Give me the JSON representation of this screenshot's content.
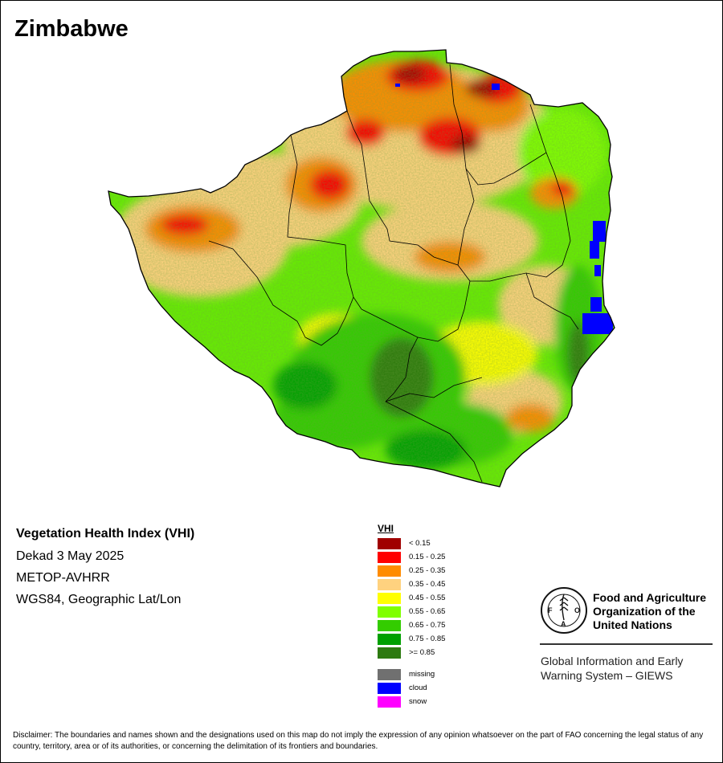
{
  "map": {
    "title": "Zimbabwe",
    "product_title": "Vegetation Health Index (VHI)",
    "dekad": "Dekad 3 May 2025",
    "sensor": "METOP-AVHRR",
    "projection": "WGS84, Geographic Lat/Lon"
  },
  "legend": {
    "title": "VHI",
    "classes": [
      {
        "label": "< 0.15",
        "color": "#a00000"
      },
      {
        "label": "0.15 - 0.25",
        "color": "#ff0000"
      },
      {
        "label": "0.25 - 0.35",
        "color": "#ff8c00"
      },
      {
        "label": "0.35 - 0.45",
        "color": "#ffd27f"
      },
      {
        "label": "0.45 - 0.55",
        "color": "#ffff00"
      },
      {
        "label": "0.55 - 0.65",
        "color": "#80ff00"
      },
      {
        "label": "0.65 - 0.75",
        "color": "#33cc00"
      },
      {
        "label": "0.75 - 0.85",
        "color": "#00a000"
      },
      {
        "label": ">= 0.85",
        "color": "#2d7a10"
      }
    ],
    "other": [
      {
        "label": "missing",
        "color": "#707070"
      },
      {
        "label": "cloud",
        "color": "#0000ff"
      },
      {
        "label": "snow",
        "color": "#ff00ff"
      }
    ]
  },
  "logo": {
    "organization": "Food and Agriculture Organization of the United Nations",
    "org_line1": "Food and Agriculture",
    "org_line2": "Organization of the",
    "org_line3": "United Nations",
    "motto": "FIAT PANIS",
    "letters": "FAO",
    "system_line1": "Global Information and Early",
    "system_line2": "Warning System – GIEWS"
  },
  "disclaimer": "Disclaimer: The boundaries and names shown and the designations used on this map do not imply the expression of any opinion whatsoever on the part of FAO concerning the legal status of any country, territory, area or of its authorities, or concerning the delimitation of its frontiers and boundaries."
}
